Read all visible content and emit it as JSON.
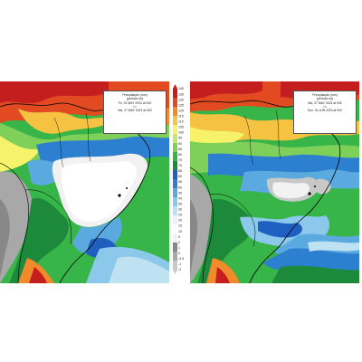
{
  "colors": {
    "scale": [
      "#c8c8c8",
      "#a8a8a8",
      "#888888",
      "#f2f2f2",
      "#ffffff",
      "#e8f4fa",
      "#bfe2f2",
      "#8cc8ea",
      "#5aaae0",
      "#2d7fd0",
      "#1f5fbf",
      "#1c8a3a",
      "#38b548",
      "#7fd05a",
      "#c5e86e",
      "#f6f36a",
      "#f5c242",
      "#f08a2a",
      "#e24a22",
      "#c41e1e"
    ],
    "coast": "#000000"
  },
  "scale_ticks": [
    "140",
    "135",
    "130",
    "125",
    "120",
    "115",
    "110",
    "105",
    "100",
    "95",
    "90",
    "85",
    "80",
    "75",
    "70",
    "65",
    "60",
    "55",
    "50",
    "45",
    "40",
    "35",
    "30",
    "25",
    "20",
    "15",
    "10",
    "5",
    "2",
    "1",
    "0",
    "-0.5",
    "-1",
    "-2"
  ],
  "left_map": {
    "legend": {
      "title": "Precipitação (mm)",
      "subtitle": "(periodo tot)",
      "date_from": "Fri, 19 MAY 2023 at 00Z",
      "sep": "<>",
      "date_to": "Sat, 27 MAY 2023 at 00Z"
    }
  },
  "right_map": {
    "legend": {
      "title": "Precipitação (mm)",
      "subtitle": "(periodo tot)",
      "date_from": "Sat, 27 MAY 2023 at 00Z",
      "sep": "<>",
      "date_to": "Sun, 04 JUN 2023 at 00Z"
    }
  }
}
